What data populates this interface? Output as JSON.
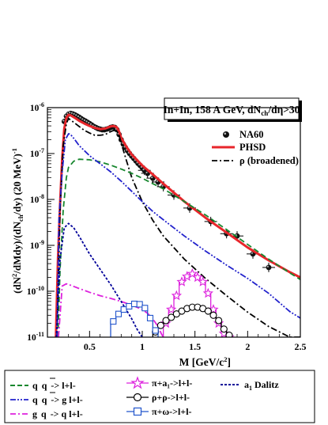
{
  "chart_data": {
    "type": "line",
    "title": "In+In, 158 A GeV, dNₕₕ/dη>30",
    "title_parts": {
      "main": "In+In, 158 A GeV, dN",
      "sub": "ch",
      "tail": "/dη>30"
    },
    "xlabel": "M  [GeV/c²]",
    "ylabel": "(dN²/dMdy)/(dN_ch/dy)  (20 MeV)⁻¹",
    "xlim": [
      0.1,
      2.5
    ],
    "ylim": [
      1e-11,
      1e-06
    ],
    "yscale": "log",
    "x_ticks": [
      "0.5",
      "1",
      "1.5",
      "2",
      "2.5"
    ],
    "y_ticks": [
      "10⁻¹¹",
      "10⁻¹⁰",
      "10⁻⁹",
      "10⁻⁸",
      "10⁻⁷",
      "10⁻⁶"
    ],
    "legend_inner": [
      "NA60",
      "PHSD",
      "ρ (broadened)"
    ],
    "legend_outer": [
      "q q → l+l-",
      "q q → g l+l-",
      "g q → q l+l-",
      "π+a₁→l+l-",
      "ρ+ρ→l+l-",
      "π+ω→l+l-",
      "a₁ Dalitz"
    ],
    "legend_outer_text": {
      "qqbar": {
        "a": "q",
        "b": "q",
        "c": "-> l+l-"
      },
      "qqbar_g": {
        "a": "q",
        "b": "q",
        "c": "-> g l+l-"
      },
      "gq": {
        "a": "g",
        "b": "q",
        "c": "-> q l+l-"
      },
      "pia1": "π+a₁->l+l-",
      "rhorho": "ρ+ρ->l+l-",
      "piomega": "π+ω->l+l-",
      "a1dalitz": "Dalitz"
    },
    "series": [
      {
        "name": "NA60",
        "style": "points",
        "color": "#000000",
        "x": [
          0.26,
          0.28,
          0.3,
          0.32,
          0.34,
          0.36,
          0.38,
          0.4,
          0.42,
          0.44,
          0.46,
          0.48,
          0.5,
          0.52,
          0.54,
          0.56,
          0.58,
          0.6,
          0.62,
          0.64,
          0.66,
          0.68,
          0.7,
          0.72,
          0.74,
          0.76,
          0.78,
          0.8,
          0.82,
          0.84,
          0.86,
          0.88,
          0.9,
          0.92,
          0.94,
          0.96,
          0.98,
          1.0,
          1.02,
          1.05,
          1.1,
          1.15,
          1.2,
          1.3,
          1.45,
          1.65,
          1.8,
          1.9,
          2.05,
          2.2
        ],
        "y": [
          5e-07,
          6.5e-07,
          7.2e-07,
          7.5e-07,
          7.3e-07,
          7e-07,
          6.6e-07,
          6.2e-07,
          5.8e-07,
          5.4e-07,
          5.1e-07,
          4.8e-07,
          4.5e-07,
          4.2e-07,
          3.9e-07,
          3.7e-07,
          3.5e-07,
          3.4e-07,
          3.3e-07,
          3.3e-07,
          3.4e-07,
          3.5e-07,
          3.7e-07,
          3.8e-07,
          3.7e-07,
          3.3e-07,
          2.6e-07,
          2e-07,
          1.6e-07,
          1.35e-07,
          1.15e-07,
          1e-07,
          8.8e-08,
          7.8e-08,
          6.9e-08,
          6.1e-08,
          5.5e-08,
          4.9e-08,
          4.3e-08,
          3.7e-08,
          2.9e-08,
          2.4e-08,
          1.9e-08,
          1.25e-08,
          6.5e-09,
          3.3e-09,
          1.8e-09,
          1.6e-09,
          6.5e-10,
          3.3e-10
        ]
      },
      {
        "name": "PHSD",
        "style": "solid",
        "color": "#e8262b",
        "x": [
          0.18,
          0.2,
          0.22,
          0.24,
          0.26,
          0.28,
          0.3,
          0.32,
          0.36,
          0.4,
          0.45,
          0.5,
          0.55,
          0.6,
          0.65,
          0.7,
          0.73,
          0.76,
          0.78,
          0.8,
          0.85,
          0.9,
          1.0,
          1.1,
          1.2,
          1.4,
          1.6,
          1.8,
          2.0,
          2.2,
          2.4,
          2.5
        ],
        "y": [
          1e-11,
          5e-10,
          8e-09,
          8e-08,
          3.5e-07,
          6e-07,
          7e-07,
          6.8e-07,
          6e-07,
          5.2e-07,
          4.5e-07,
          4e-07,
          3.6e-07,
          3.4e-07,
          3.5e-07,
          3.9e-07,
          4e-07,
          3.7e-07,
          3e-07,
          2.2e-07,
          1.4e-07,
          9.5e-08,
          5.5e-08,
          3.5e-08,
          2.2e-08,
          9e-09,
          4e-09,
          1.9e-09,
          9e-10,
          4.7e-10,
          2.6e-10,
          2e-10
        ]
      },
      {
        "name": "ρ (broadened)",
        "style": "dashdot",
        "color": "#000000",
        "x": [
          0.19,
          0.22,
          0.25,
          0.28,
          0.3,
          0.32,
          0.36,
          0.4,
          0.45,
          0.5,
          0.55,
          0.6,
          0.65,
          0.7,
          0.73,
          0.76,
          0.78,
          0.8,
          0.85,
          0.9,
          1.0,
          1.1,
          1.2,
          1.4,
          1.6,
          1.8,
          2.0,
          2.2,
          2.4,
          2.5
        ],
        "y": [
          1e-11,
          6e-09,
          1.5e-07,
          4.5e-07,
          5.8e-07,
          5.4e-07,
          4.6e-07,
          3.9e-07,
          3.2e-07,
          2.8e-07,
          2.5e-07,
          2.5e-07,
          2.6e-07,
          3e-07,
          3.2e-07,
          3.1e-07,
          2.5e-07,
          1.7e-07,
          7e-08,
          3e-08,
          9e-09,
          3.5e-09,
          1.6e-09,
          5e-10,
          1.9e-10,
          8e-11,
          3.5e-11,
          1.7e-11,
          1e-11,
          1e-11
        ]
      },
      {
        "name": "q q → l+l-",
        "style": "dashed",
        "color": "#17872e",
        "x": [
          0.2,
          0.22,
          0.25,
          0.28,
          0.3,
          0.35,
          0.4,
          0.5,
          0.6,
          0.7,
          0.8,
          0.9,
          1.0,
          1.1,
          1.2,
          1.4,
          1.6,
          1.8,
          2.0,
          2.2,
          2.4,
          2.5
        ],
        "y": [
          1e-11,
          3e-10,
          6e-09,
          3e-08,
          5e-08,
          6.8e-08,
          7.5e-08,
          7.3e-08,
          6.6e-08,
          5.6e-08,
          4.6e-08,
          3.7e-08,
          2.9e-08,
          2.2e-08,
          1.7e-08,
          9e-09,
          4.6e-09,
          2.2e-09,
          1.05e-09,
          5e-10,
          2.5e-10,
          1.8e-10
        ]
      },
      {
        "name": "q q → g l+l-",
        "style": "dashdotdot",
        "color": "#2222cc",
        "x": [
          0.19,
          0.21,
          0.24,
          0.27,
          0.3,
          0.32,
          0.36,
          0.4,
          0.5,
          0.6,
          0.7,
          0.8,
          0.9,
          1.0,
          1.1,
          1.2,
          1.4,
          1.6,
          1.8,
          2.0,
          2.2,
          2.4,
          2.5
        ],
        "y": [
          1e-11,
          4e-09,
          4e-08,
          2e-07,
          2.7e-07,
          2.6e-07,
          2e-07,
          1.5e-07,
          9e-08,
          6e-08,
          4e-08,
          2.5e-08,
          1.5e-08,
          9e-09,
          5.5e-09,
          3.6e-09,
          1.6e-09,
          7.5e-10,
          3.7e-10,
          1.9e-10,
          9e-11,
          3.6e-11,
          2.6e-11
        ]
      },
      {
        "name": "g q → q l+l-",
        "style": "dashdot",
        "color": "#dd22dd",
        "x": [
          0.205,
          0.24,
          0.28,
          0.32,
          0.4,
          0.5,
          0.6,
          0.7,
          0.8,
          0.9,
          1.0,
          1.05,
          1.1,
          1.15,
          1.18,
          1.2
        ],
        "y": [
          1e-11,
          1.3e-10,
          1.45e-10,
          1.35e-10,
          1.15e-10,
          9.5e-11,
          8e-11,
          7e-11,
          6e-11,
          5e-11,
          4e-11,
          3.3e-11,
          2.5e-11,
          1.7e-11,
          1.2e-11,
          1e-11
        ]
      },
      {
        "name": "a₁ Dalitz",
        "style": "dotted",
        "color": "#000099",
        "x": [
          0.185,
          0.22,
          0.26,
          0.3,
          0.35,
          0.4,
          0.5,
          0.6,
          0.7,
          0.8,
          0.9,
          0.95,
          1.0
        ],
        "y": [
          1e-11,
          5e-10,
          2.4e-09,
          3e-09,
          2.4e-09,
          1.6e-09,
          6.5e-10,
          3e-10,
          1.4e-10,
          6e-11,
          2.5e-11,
          1.5e-11,
          1e-11
        ]
      },
      {
        "name": "π+a₁→l+l-",
        "style": "step-star",
        "color": "#dd22dd",
        "edges": [
          1.2,
          1.25,
          1.3,
          1.35,
          1.4,
          1.45,
          1.5,
          1.55,
          1.6,
          1.65,
          1.7,
          1.75,
          1.8,
          1.85
        ],
        "y": [
          2e-11,
          4e-11,
          8e-11,
          1.6e-10,
          2.1e-10,
          2.4e-10,
          2e-10,
          1.6e-10,
          9e-11,
          4e-11,
          2e-11,
          1.2e-11,
          1e-11
        ]
      },
      {
        "name": "ρ+ρ→l+l-",
        "style": "step-circle",
        "color": "#000000",
        "edges": [
          1.1,
          1.15,
          1.2,
          1.25,
          1.3,
          1.35,
          1.4,
          1.45,
          1.5,
          1.55,
          1.6,
          1.65,
          1.7,
          1.75,
          1.8,
          1.85
        ],
        "y": [
          1.3e-11,
          1.8e-11,
          2.3e-11,
          2.7e-11,
          3.2e-11,
          3.7e-11,
          4.2e-11,
          4.5e-11,
          4.5e-11,
          4.2e-11,
          3.7e-11,
          3e-11,
          2.3e-11,
          1.5e-11,
          1.1e-11
        ]
      },
      {
        "name": "π+ω→l+l-",
        "style": "step-square",
        "color": "#2255cc",
        "edges": [
          0.7,
          0.75,
          0.8,
          0.85,
          0.9,
          0.95,
          1.0,
          1.05,
          1.1,
          1.15
        ],
        "y": [
          2.2e-11,
          3.2e-11,
          4e-11,
          4.7e-11,
          5.3e-11,
          5.2e-11,
          4.3e-11,
          2.6e-11,
          1.4e-11
        ]
      }
    ]
  }
}
